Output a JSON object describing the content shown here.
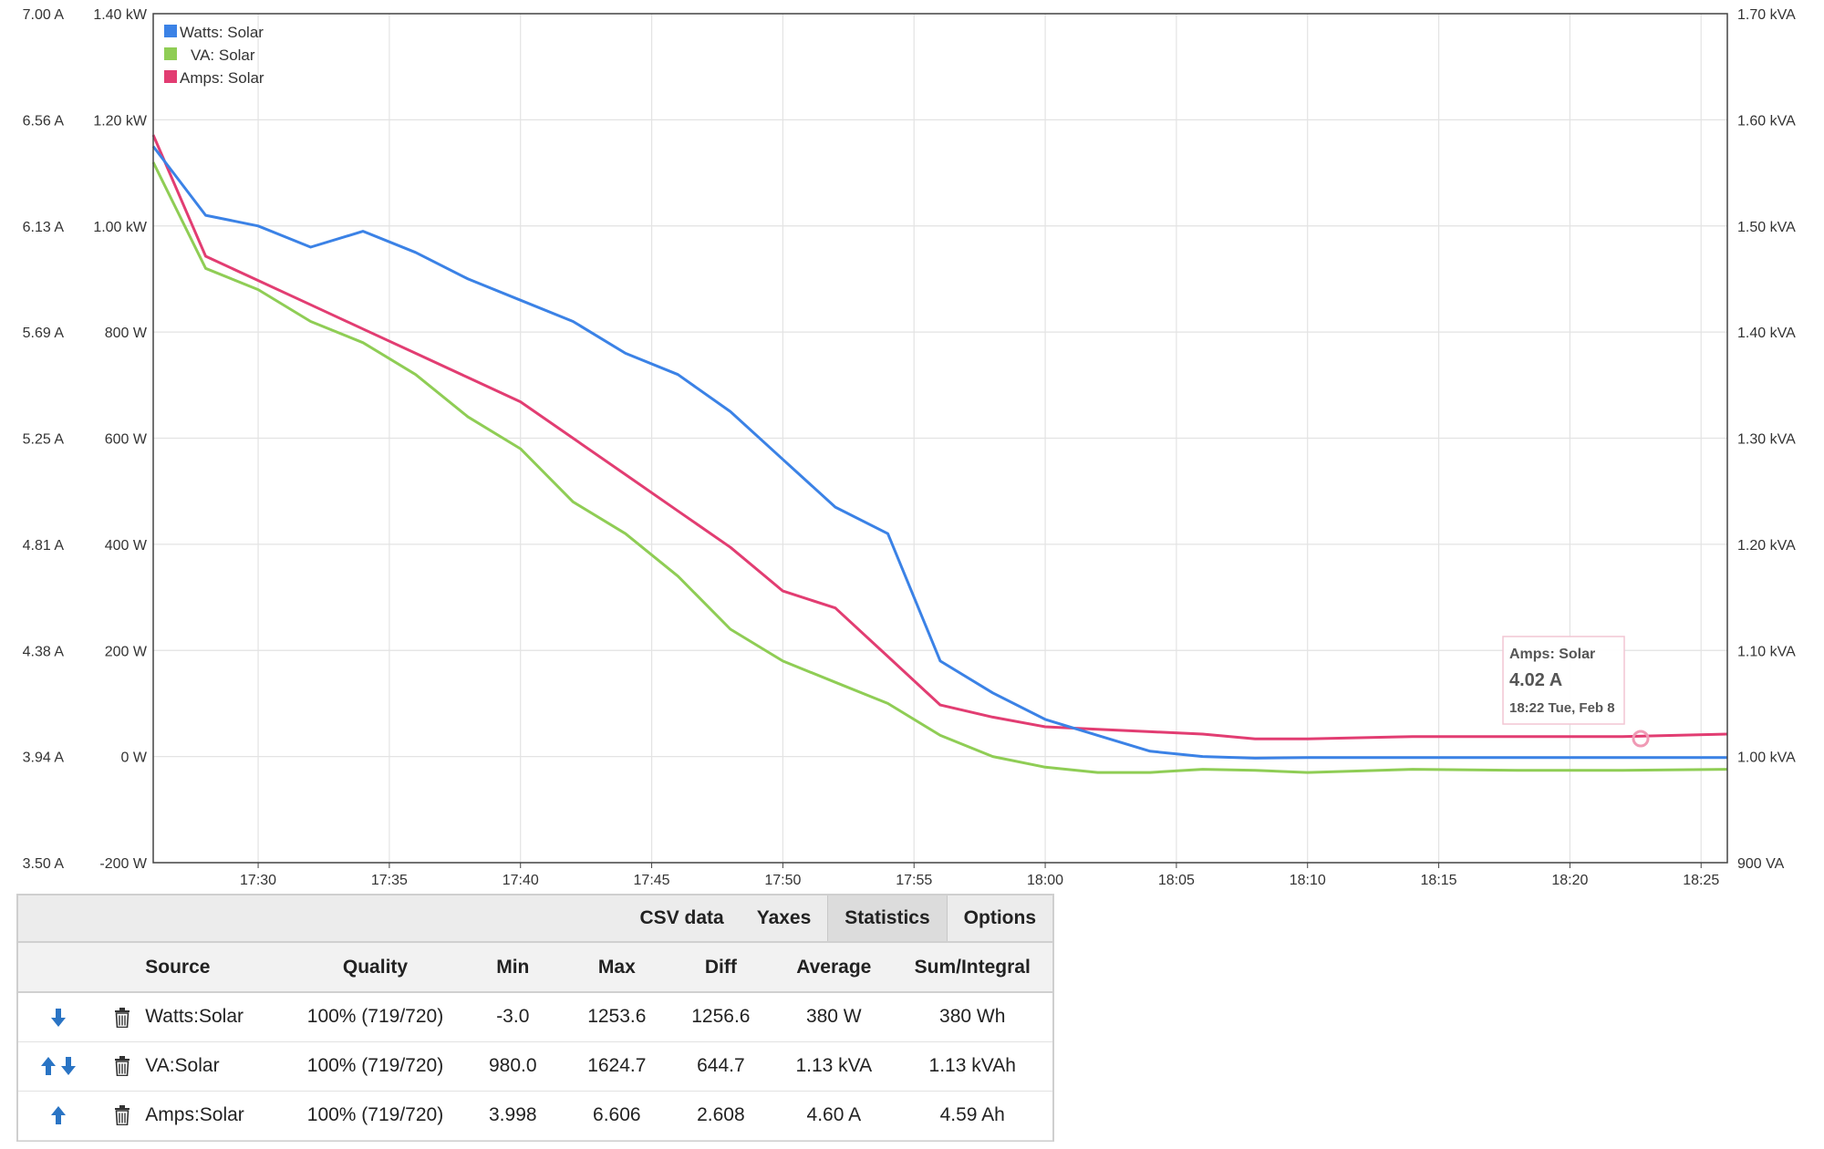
{
  "colors": {
    "watts": "#3b82e6",
    "va": "#8fcd55",
    "amps": "#e23d72",
    "grid": "#e6e6e6",
    "axis": "#333333"
  },
  "chart_data": {
    "type": "line",
    "x_ticks": [
      "17:30",
      "17:35",
      "17:40",
      "17:45",
      "17:50",
      "17:55",
      "18:00",
      "18:05",
      "18:10",
      "18:15",
      "18:20",
      "18:25"
    ],
    "x_range": [
      "17:26:00",
      "18:26:00"
    ],
    "y_left_amps": {
      "ticks": [
        "7.00 A",
        "6.56 A",
        "6.13 A",
        "5.69 A",
        "5.25 A",
        "4.81 A",
        "4.38 A",
        "3.94 A",
        "3.50 A"
      ],
      "range": [
        3.5,
        7.0
      ]
    },
    "y_left_watts": {
      "ticks": [
        "1.40 kW",
        "1.20 kW",
        "1.00 kW",
        "800 W",
        "600 W",
        "400 W",
        "200 W",
        "0 W",
        "-200 W"
      ],
      "range": [
        -200,
        1400
      ]
    },
    "y_right_va": {
      "ticks": [
        "1.70 kVA",
        "1.60 kVA",
        "1.50 kVA",
        "1.40 kVA",
        "1.30 kVA",
        "1.20 kVA",
        "1.10 kVA",
        "1.00 kVA",
        "900 VA"
      ],
      "range": [
        900,
        1700
      ]
    },
    "legend": [
      {
        "name": "Watts: Solar",
        "color": "#3b82e6"
      },
      {
        "name": "VA: Solar",
        "color": "#8fcd55"
      },
      {
        "name": "Amps: Solar",
        "color": "#e23d72"
      }
    ],
    "series": [
      {
        "name": "Watts: Solar",
        "unit": "W",
        "x": [
          "17:26",
          "17:28",
          "17:30",
          "17:32",
          "17:34",
          "17:36",
          "17:38",
          "17:40",
          "17:42",
          "17:44",
          "17:46",
          "17:48",
          "17:50",
          "17:52",
          "17:54",
          "17:56",
          "17:58",
          "18:00",
          "18:02",
          "18:04",
          "18:06",
          "18:08",
          "18:10",
          "18:14",
          "18:18",
          "18:22",
          "18:26"
        ],
        "values": [
          1150,
          1020,
          1000,
          960,
          990,
          950,
          900,
          860,
          820,
          760,
          720,
          650,
          560,
          470,
          420,
          180,
          120,
          70,
          40,
          10,
          0,
          -3,
          -2,
          -2,
          -2,
          -2,
          -2
        ]
      },
      {
        "name": "VA: Solar",
        "unit": "VA",
        "x": [
          "17:26",
          "17:28",
          "17:30",
          "17:32",
          "17:34",
          "17:36",
          "17:38",
          "17:40",
          "17:42",
          "17:44",
          "17:46",
          "17:48",
          "17:50",
          "17:52",
          "17:54",
          "17:56",
          "17:58",
          "18:00",
          "18:02",
          "18:04",
          "18:06",
          "18:08",
          "18:10",
          "18:14",
          "18:18",
          "18:22",
          "18:26"
        ],
        "values": [
          1560,
          1460,
          1440,
          1410,
          1390,
          1360,
          1320,
          1290,
          1240,
          1210,
          1170,
          1120,
          1090,
          1070,
          1050,
          1020,
          1000,
          990,
          985,
          985,
          988,
          987,
          985,
          988,
          987,
          987,
          988
        ]
      },
      {
        "name": "Amps: Solar",
        "unit": "A",
        "x": [
          "17:26",
          "17:28",
          "17:30",
          "17:32",
          "17:34",
          "17:36",
          "17:38",
          "17:40",
          "17:42",
          "17:44",
          "17:46",
          "17:48",
          "17:50",
          "17:52",
          "17:54",
          "17:56",
          "17:58",
          "18:00",
          "18:02",
          "18:04",
          "18:06",
          "18:08",
          "18:10",
          "18:14",
          "18:18",
          "18:22",
          "18:26"
        ],
        "values": [
          6.5,
          6.0,
          5.9,
          5.8,
          5.7,
          5.6,
          5.5,
          5.4,
          5.25,
          5.1,
          4.95,
          4.8,
          4.62,
          4.55,
          4.35,
          4.15,
          4.1,
          4.06,
          4.05,
          4.04,
          4.03,
          4.01,
          4.01,
          4.02,
          4.02,
          4.02,
          4.03
        ]
      }
    ],
    "tooltip": {
      "series": "Amps: Solar",
      "value": "4.02 A",
      "time": "18:22 Tue, Feb 8"
    }
  },
  "panel": {
    "tabs": [
      "CSV data",
      "Yaxes",
      "Statistics",
      "Options"
    ],
    "active_tab": "Statistics",
    "columns": [
      "Source",
      "Quality",
      "Min",
      "Max",
      "Diff",
      "Average",
      "Sum/Integral"
    ],
    "rows": [
      {
        "arrows": "down",
        "source": "Watts:Solar",
        "quality": "100% (719/720)",
        "min": "-3.0",
        "max": "1253.6",
        "diff": "1256.6",
        "average": "380 W",
        "sum": "380 Wh"
      },
      {
        "arrows": "updown",
        "source": "VA:Solar",
        "quality": "100% (719/720)",
        "min": "980.0",
        "max": "1624.7",
        "diff": "644.7",
        "average": "1.13 kVA",
        "sum": "1.13 kVAh"
      },
      {
        "arrows": "up",
        "source": "Amps:Solar",
        "quality": "100% (719/720)",
        "min": "3.998",
        "max": "6.606",
        "diff": "2.608",
        "average": "4.60 A",
        "sum": "4.59 Ah"
      }
    ]
  }
}
